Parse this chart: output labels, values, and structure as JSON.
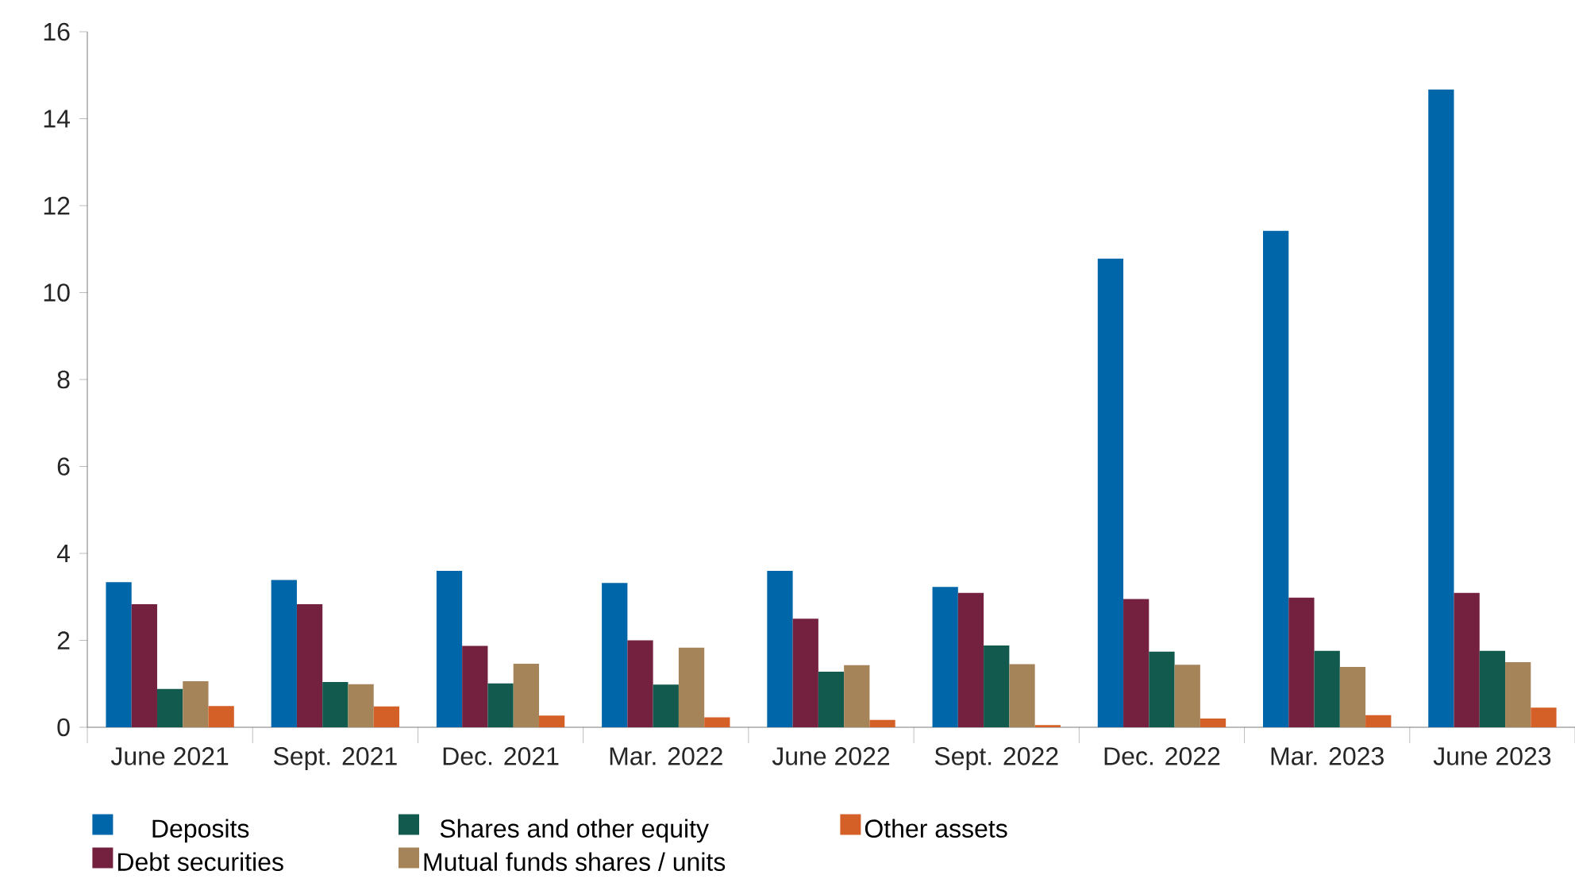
{
  "chart_data": {
    "type": "bar",
    "categories": [
      "June 2021",
      "Sept. 2021",
      "Dec. 2021",
      "Mar. 2022",
      "June 2022",
      "Sept. 2022",
      "Dec. 2022",
      "Mar. 2023",
      "June 2023"
    ],
    "series": [
      {
        "name": "Deposits",
        "color": "#0066aa",
        "values": [
          3.34,
          3.39,
          3.6,
          3.32,
          3.6,
          3.23,
          10.78,
          11.42,
          14.67
        ]
      },
      {
        "name": "Debt securities",
        "color": "#73213e",
        "values": [
          2.83,
          2.83,
          1.87,
          2.0,
          2.5,
          3.09,
          2.95,
          2.98,
          3.09
        ]
      },
      {
        "name": "Shares and other equity",
        "color": "#115a4d",
        "values": [
          0.88,
          1.04,
          1.01,
          0.98,
          1.28,
          1.88,
          1.74,
          1.76,
          1.76
        ]
      },
      {
        "name": "Mutual funds shares / units",
        "color": "#a5845a",
        "values": [
          1.06,
          0.99,
          1.46,
          1.83,
          1.43,
          1.45,
          1.44,
          1.39,
          1.5
        ]
      },
      {
        "name": "Other assets",
        "color": "#d45f27",
        "values": [
          0.49,
          0.48,
          0.27,
          0.23,
          0.17,
          0.05,
          0.2,
          0.28,
          0.45
        ]
      }
    ],
    "ylim": [
      0,
      16
    ],
    "yticks": [
      0,
      2,
      4,
      6,
      8,
      10,
      12,
      14,
      16
    ],
    "grid": false,
    "legend": "bottom"
  }
}
